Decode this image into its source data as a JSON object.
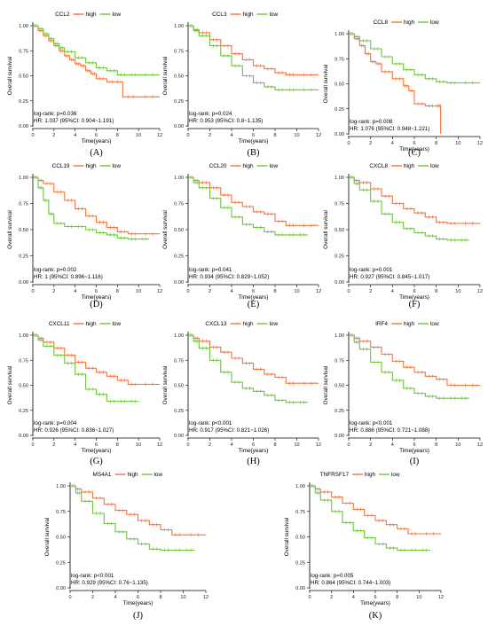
{
  "colors": {
    "high": "#f4743b",
    "low": "#6fc43c",
    "axis": "#000000"
  },
  "legend_high": "high",
  "legend_low": "low",
  "xlabel": "Time(years)",
  "ylabel": "Overall survival",
  "xticks": [
    "0",
    "2",
    "4",
    "6",
    "8",
    "10",
    "12"
  ],
  "yticks": [
    "0.00",
    "0.25",
    "0.50",
    "0.75",
    "1.00"
  ],
  "chart_data": [
    {
      "type": "line",
      "panel": "(A)",
      "title": "CCL2",
      "logrank": "log-rank: p=0.036",
      "hr": "HR: 1.037 (95%CI: 0.904~1.191)",
      "xlim": [
        0,
        12
      ],
      "ylim": [
        0,
        1
      ],
      "series": [
        {
          "name": "high",
          "x": [
            0,
            0.5,
            1,
            1.5,
            2,
            2.5,
            3,
            3.5,
            4,
            4.5,
            5,
            5.5,
            6,
            7,
            8.5,
            10,
            12
          ],
          "y": [
            1.0,
            0.95,
            0.9,
            0.85,
            0.8,
            0.75,
            0.7,
            0.66,
            0.62,
            0.6,
            0.55,
            0.52,
            0.47,
            0.44,
            0.29,
            0.29,
            0.29
          ]
        },
        {
          "name": "low",
          "x": [
            0,
            0.5,
            1,
            1.5,
            2,
            2.5,
            3,
            4,
            5,
            6,
            7,
            8,
            9,
            10,
            12
          ],
          "y": [
            1.0,
            0.97,
            0.92,
            0.87,
            0.82,
            0.78,
            0.74,
            0.68,
            0.63,
            0.58,
            0.55,
            0.51,
            0.51,
            0.51,
            0.51
          ]
        }
      ]
    },
    {
      "type": "line",
      "panel": "(B)",
      "title": "CCL3",
      "logrank": "log-rank: p=0.024",
      "hr": "HR: 0.953 (95%CI: 0.8~1.135)",
      "xlim": [
        0,
        12
      ],
      "ylim": [
        0,
        1
      ],
      "series": [
        {
          "name": "high",
          "x": [
            0,
            0.5,
            1,
            2,
            3,
            4,
            5,
            6,
            7,
            8,
            9,
            10,
            12
          ],
          "y": [
            1.0,
            0.96,
            0.93,
            0.86,
            0.8,
            0.72,
            0.66,
            0.6,
            0.57,
            0.53,
            0.51,
            0.51,
            0.51
          ]
        },
        {
          "name": "low",
          "x": [
            0,
            0.5,
            1,
            2,
            3,
            4,
            5,
            6,
            7,
            8,
            9,
            10,
            12
          ],
          "y": [
            1.0,
            0.95,
            0.9,
            0.8,
            0.7,
            0.6,
            0.5,
            0.43,
            0.39,
            0.36,
            0.36,
            0.36,
            0.36
          ]
        }
      ]
    },
    {
      "type": "line",
      "panel": "(C)",
      "title": "CCL8",
      "logrank": "log-rank: p=0.008",
      "hr": "HR: 1.076 (95%CI: 0.948~1.221)",
      "xlim": [
        0,
        12
      ],
      "ylim": [
        0,
        1
      ],
      "series": [
        {
          "name": "high",
          "x": [
            0,
            0.5,
            1,
            1.5,
            2,
            2.5,
            3,
            4,
            5,
            5.5,
            6,
            7,
            8,
            8.3,
            8.4
          ],
          "y": [
            1.0,
            0.95,
            0.88,
            0.8,
            0.72,
            0.7,
            0.62,
            0.55,
            0.48,
            0.43,
            0.3,
            0.28,
            0.28,
            0.28,
            0.0
          ]
        },
        {
          "name": "low",
          "x": [
            0,
            0.5,
            1,
            2,
            3,
            4,
            5,
            6,
            7,
            8,
            9,
            10,
            12
          ],
          "y": [
            1.0,
            0.97,
            0.93,
            0.85,
            0.77,
            0.7,
            0.64,
            0.59,
            0.55,
            0.52,
            0.51,
            0.51,
            0.51
          ]
        }
      ]
    },
    {
      "type": "line",
      "panel": "(D)",
      "title": "CCL19",
      "logrank": "log-rank: p=0.002",
      "hr": "HR: 1 (95%CI: 0.896~1.116)",
      "xlim": [
        0,
        12
      ],
      "ylim": [
        0,
        1
      ],
      "series": [
        {
          "name": "high",
          "x": [
            0,
            0.5,
            1,
            2,
            3,
            4,
            5,
            6,
            7,
            8,
            9,
            10,
            12
          ],
          "y": [
            1.0,
            0.97,
            0.94,
            0.86,
            0.78,
            0.7,
            0.63,
            0.57,
            0.52,
            0.48,
            0.46,
            0.46,
            0.46
          ]
        },
        {
          "name": "low",
          "x": [
            0,
            0.5,
            1,
            1.5,
            2,
            3,
            4,
            5,
            6,
            7,
            8,
            9,
            10,
            11
          ],
          "y": [
            1.0,
            0.9,
            0.78,
            0.65,
            0.56,
            0.53,
            0.53,
            0.5,
            0.47,
            0.45,
            0.42,
            0.41,
            0.41,
            0.41
          ]
        }
      ]
    },
    {
      "type": "line",
      "panel": "(E)",
      "title": "CCL20",
      "logrank": "log-rank: p=0.041",
      "hr": "HR: 0.934 (95%CI: 0.829~1.052)",
      "xlim": [
        0,
        12
      ],
      "ylim": [
        0,
        1
      ],
      "series": [
        {
          "name": "high",
          "x": [
            0,
            0.5,
            1,
            2,
            3,
            4,
            5,
            6,
            7,
            8,
            9,
            10,
            12
          ],
          "y": [
            1.0,
            0.97,
            0.95,
            0.9,
            0.83,
            0.76,
            0.72,
            0.67,
            0.65,
            0.58,
            0.54,
            0.54,
            0.54
          ]
        },
        {
          "name": "low",
          "x": [
            0,
            0.5,
            1,
            2,
            3,
            4,
            5,
            6,
            7,
            8,
            9,
            10,
            11
          ],
          "y": [
            1.0,
            0.95,
            0.9,
            0.8,
            0.71,
            0.62,
            0.55,
            0.52,
            0.48,
            0.45,
            0.45,
            0.45,
            0.45
          ]
        }
      ]
    },
    {
      "type": "line",
      "panel": "(F)",
      "title": "CXCL8",
      "logrank": "log-rank: p=0.001",
      "hr": "HR: 0.927 (95%CI: 0.845~1.017)",
      "xlim": [
        0,
        12
      ],
      "ylim": [
        0,
        1
      ],
      "series": [
        {
          "name": "high",
          "x": [
            0,
            0.5,
            1,
            2,
            3,
            4,
            5,
            6,
            7,
            8,
            9,
            10,
            12
          ],
          "y": [
            1.0,
            0.97,
            0.95,
            0.89,
            0.82,
            0.75,
            0.7,
            0.66,
            0.62,
            0.57,
            0.56,
            0.56,
            0.56
          ]
        },
        {
          "name": "low",
          "x": [
            0,
            0.5,
            1,
            2,
            3,
            4,
            5,
            6,
            7,
            8,
            9,
            10,
            11
          ],
          "y": [
            1.0,
            0.94,
            0.88,
            0.77,
            0.65,
            0.57,
            0.51,
            0.47,
            0.44,
            0.41,
            0.4,
            0.4,
            0.4
          ]
        }
      ]
    },
    {
      "type": "line",
      "panel": "(G)",
      "title": "CXCL11",
      "logrank": "log-rank: p=0.004",
      "hr": "HR: 0.926 (95%CI: 0.836~1.027)",
      "xlim": [
        0,
        12
      ],
      "ylim": [
        0,
        1
      ],
      "series": [
        {
          "name": "high",
          "x": [
            0,
            0.5,
            1,
            2,
            3,
            4,
            5,
            6,
            7,
            8,
            9,
            10,
            12
          ],
          "y": [
            1.0,
            0.97,
            0.93,
            0.87,
            0.8,
            0.73,
            0.67,
            0.63,
            0.59,
            0.55,
            0.51,
            0.51,
            0.51
          ]
        },
        {
          "name": "low",
          "x": [
            0,
            0.5,
            1,
            2,
            3,
            4,
            5,
            6,
            7,
            8,
            9,
            10
          ],
          "y": [
            1.0,
            0.95,
            0.89,
            0.8,
            0.72,
            0.61,
            0.46,
            0.41,
            0.34,
            0.34,
            0.34,
            0.34
          ]
        }
      ]
    },
    {
      "type": "line",
      "panel": "(H)",
      "title": "CXCL13",
      "logrank": "log-rank: p<0.001",
      "hr": "HR: 0.917 (95%CI: 0.821~1.026)",
      "xlim": [
        0,
        12
      ],
      "ylim": [
        0,
        1
      ],
      "series": [
        {
          "name": "high",
          "x": [
            0,
            0.5,
            1,
            2,
            3,
            4,
            5,
            6,
            7,
            8,
            9,
            10,
            12
          ],
          "y": [
            1.0,
            0.97,
            0.94,
            0.88,
            0.83,
            0.77,
            0.72,
            0.66,
            0.61,
            0.58,
            0.52,
            0.52,
            0.52
          ]
        },
        {
          "name": "low",
          "x": [
            0,
            0.5,
            1,
            2,
            3,
            4,
            5,
            6,
            7,
            8,
            9,
            10,
            11
          ],
          "y": [
            1.0,
            0.94,
            0.87,
            0.75,
            0.63,
            0.53,
            0.47,
            0.44,
            0.4,
            0.35,
            0.33,
            0.33,
            0.33
          ]
        }
      ]
    },
    {
      "type": "line",
      "panel": "(I)",
      "title": "IRF4",
      "logrank": "log-rank: p<0.001",
      "hr": "HR: 0.886 (95%CI: 0.721~1.088)",
      "xlim": [
        0,
        12
      ],
      "ylim": [
        0,
        1
      ],
      "series": [
        {
          "name": "high",
          "x": [
            0,
            0.5,
            1,
            2,
            3,
            4,
            5,
            6,
            7,
            8,
            9,
            10,
            12
          ],
          "y": [
            1.0,
            0.97,
            0.94,
            0.88,
            0.81,
            0.74,
            0.68,
            0.63,
            0.59,
            0.56,
            0.5,
            0.5,
            0.5
          ]
        },
        {
          "name": "low",
          "x": [
            0,
            0.5,
            1,
            2,
            3,
            4,
            5,
            6,
            7,
            8,
            9,
            10,
            11
          ],
          "y": [
            1.0,
            0.93,
            0.86,
            0.73,
            0.63,
            0.55,
            0.47,
            0.42,
            0.39,
            0.37,
            0.37,
            0.37,
            0.37
          ]
        }
      ]
    },
    {
      "type": "line",
      "panel": "(J)",
      "title": "MS4A1",
      "logrank": "log-rank: p<0.001",
      "hr": "HR: 0.929 (95%CI: 0.76~1.135)",
      "xlim": [
        0,
        12
      ],
      "ylim": [
        0,
        1
      ],
      "series": [
        {
          "name": "high",
          "x": [
            0,
            0.5,
            1,
            2,
            3,
            4,
            5,
            6,
            7,
            8,
            9,
            10,
            12
          ],
          "y": [
            1.0,
            0.97,
            0.94,
            0.88,
            0.82,
            0.76,
            0.72,
            0.66,
            0.62,
            0.57,
            0.52,
            0.52,
            0.52
          ]
        },
        {
          "name": "low",
          "x": [
            0,
            0.5,
            1,
            2,
            3,
            4,
            5,
            6,
            7,
            8,
            9,
            10,
            11
          ],
          "y": [
            1.0,
            0.93,
            0.85,
            0.73,
            0.63,
            0.55,
            0.48,
            0.43,
            0.38,
            0.37,
            0.37,
            0.37,
            0.37
          ]
        }
      ]
    },
    {
      "type": "line",
      "panel": "(K)",
      "title": "TNFRSF17",
      "logrank": "log-rank: p=0.005",
      "hr": "HR: 0.864 (95%CI: 0.744~1.003)",
      "xlim": [
        0,
        12
      ],
      "ylim": [
        0,
        1
      ],
      "series": [
        {
          "name": "high",
          "x": [
            0,
            0.5,
            1,
            2,
            3,
            4,
            5,
            6,
            7,
            8,
            9,
            10,
            12
          ],
          "y": [
            1.0,
            0.97,
            0.94,
            0.89,
            0.83,
            0.77,
            0.71,
            0.66,
            0.62,
            0.58,
            0.53,
            0.53,
            0.53
          ]
        },
        {
          "name": "low",
          "x": [
            0,
            0.5,
            1,
            2,
            3,
            4,
            5,
            6,
            7,
            8,
            9,
            10,
            11
          ],
          "y": [
            1.0,
            0.93,
            0.86,
            0.75,
            0.64,
            0.56,
            0.49,
            0.43,
            0.39,
            0.37,
            0.37,
            0.37,
            0.37
          ]
        }
      ]
    }
  ]
}
